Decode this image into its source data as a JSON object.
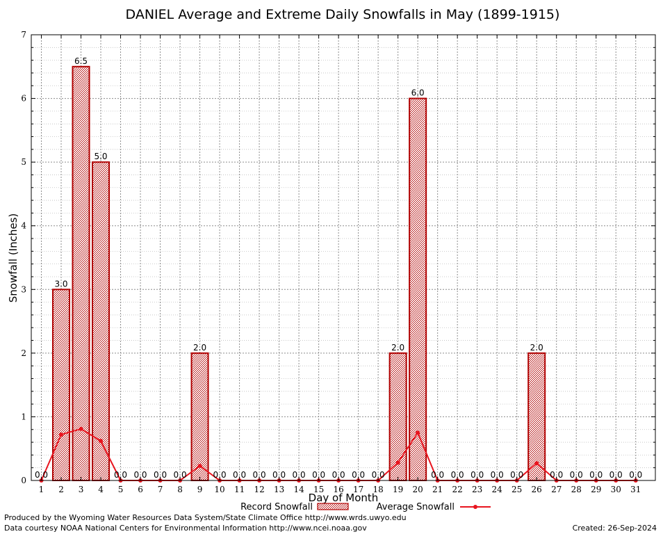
{
  "chart_data": {
    "type": "bar",
    "title": "DANIEL Average and Extreme Daily Snowfalls in May (1899-1915)",
    "xlabel": "Day of Month",
    "ylabel": "Snowfall (Inches)",
    "ylim": [
      0,
      7
    ],
    "yticks": [
      "0",
      "1",
      "2",
      "3",
      "4",
      "5",
      "6",
      "7"
    ],
    "categories": [
      "1",
      "2",
      "3",
      "4",
      "5",
      "6",
      "7",
      "8",
      "9",
      "10",
      "11",
      "12",
      "13",
      "14",
      "15",
      "16",
      "17",
      "18",
      "19",
      "20",
      "21",
      "22",
      "23",
      "24",
      "25",
      "26",
      "27",
      "28",
      "29",
      "30",
      "31"
    ],
    "grid": true,
    "legend_position": "bottom",
    "series": [
      {
        "name": "Record Snowfall",
        "kind": "bar",
        "color": "#b00000",
        "values": [
          0.0,
          3.0,
          6.5,
          5.0,
          0.0,
          0.0,
          0.0,
          0.0,
          2.0,
          0.0,
          0.0,
          0.0,
          0.0,
          0.0,
          0.0,
          0.0,
          0.0,
          0.0,
          2.0,
          6.0,
          0.0,
          0.0,
          0.0,
          0.0,
          0.0,
          2.0,
          0.0,
          0.0,
          0.0,
          0.0,
          0.0
        ],
        "labels": [
          "0.0",
          "3.0",
          "6.5",
          "5.0",
          "0.0",
          "0.0",
          "0.0",
          "0.0",
          "2.0",
          "0.0",
          "0.0",
          "0.0",
          "0.0",
          "0.0",
          "0.0",
          "0.0",
          "0.0",
          "0.0",
          "2.0",
          "6.0",
          "0.0",
          "0.0",
          "0.0",
          "0.0",
          "0.0",
          "2.0",
          "0.0",
          "0.0",
          "0.0",
          "0.0",
          "0.0"
        ]
      },
      {
        "name": "Average Snowfall",
        "kind": "line",
        "color": "#e8141e",
        "values": [
          0.0,
          0.72,
          0.81,
          0.62,
          0.0,
          0.0,
          0.0,
          0.0,
          0.23,
          0.0,
          0.0,
          0.0,
          0.0,
          0.0,
          0.0,
          0.0,
          0.0,
          0.0,
          0.28,
          0.75,
          0.0,
          0.0,
          0.0,
          0.0,
          0.0,
          0.27,
          0.0,
          0.0,
          0.0,
          0.0,
          0.0
        ]
      }
    ]
  },
  "footer": {
    "producer": "Produced by the Wyoming Water Resources Data System/State Climate Office http://www.wrds.uwyo.edu",
    "courtesy": "Data courtesy NOAA National Centers for Environmental Information http://www.ncei.noaa.gov",
    "created": "Created:  26-Sep-2024"
  }
}
